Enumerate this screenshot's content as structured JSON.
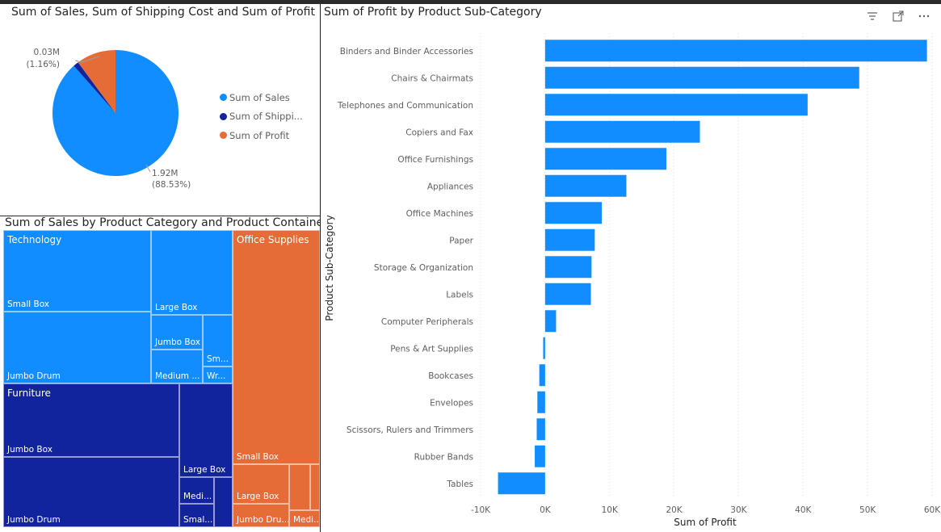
{
  "colors": {
    "sales": "#118dff",
    "shipping": "#12239e",
    "profit": "#e66c37",
    "technology": "#118dff",
    "furniture": "#12239e",
    "office_supplies": "#e66c37",
    "bar": "#118dff",
    "grid": "#d9d9d9"
  },
  "pie": {
    "title": "Sum of Sales, Sum of Shipping Cost and Sum of Profit",
    "label_small": {
      "value": "0.03M",
      "pct": "(1.16%)"
    },
    "label_large": {
      "value": "1.92M",
      "pct": "(88.53%)"
    },
    "legend": [
      {
        "label": "Sum of Sales",
        "color": "#118dff"
      },
      {
        "label": "Sum of Shippi...",
        "color": "#12239e"
      },
      {
        "label": "Sum of Profit",
        "color": "#e66c37"
      }
    ]
  },
  "treemap": {
    "title": "Sum of Sales by Product Category and Product Container",
    "categories": {
      "technology": "Technology",
      "furniture": "Furniture",
      "office_supplies": "Office Supplies"
    },
    "labels": {
      "tech_small_box": "Small Box",
      "tech_jumbo_drum": "Jumbo Drum",
      "tech_large_box": "Large Box",
      "tech_jumbo_box": "Jumbo Box",
      "tech_medium": "Medium ...",
      "tech_sm": "Sm...",
      "tech_wr": "Wr...",
      "furn_jumbo_box": "Jumbo Box",
      "furn_jumbo_drum": "Jumbo Drum",
      "furn_large_box": "Large Box",
      "furn_medi": "Medi...",
      "furn_smal": "Smal...",
      "off_small_box": "Small Box",
      "off_large_box": "Large Box",
      "off_jumbo_dru": "Jumbo Dru...",
      "off_medi": "Medi..."
    }
  },
  "bar_title": "Sum of Profit by Product Sub-Category",
  "chart_data": [
    {
      "type": "pie",
      "title": "Sum of Sales, Sum of Shipping Cost and Sum of Profit",
      "labels": [
        "Sum of Sales",
        "Sum of Shippi...",
        "Sum of Profit"
      ],
      "values": [
        1.92,
        0.03,
        0.22
      ],
      "data_labels": [
        "1.92M (88.53%)",
        "0.03M (1.16%)",
        ""
      ]
    },
    {
      "type": "bar",
      "orientation": "horizontal",
      "title": "Sum of Profit by Product Sub-Category",
      "xlabel": "Sum of Profit",
      "ylabel": "Product Sub-Category",
      "xlim": [
        -10000,
        60000
      ],
      "x_ticks": [
        "-10K",
        "0K",
        "10K",
        "20K",
        "30K",
        "40K",
        "50K",
        "60K"
      ],
      "grid": true,
      "categories": [
        "Binders and Binder Accessories",
        "Chairs & Chairmats",
        "Telephones and Communication",
        "Copiers and Fax",
        "Office Furnishings",
        "Appliances",
        "Office Machines",
        "Paper",
        "Storage & Organization",
        "Labels",
        "Computer Peripherals",
        "Pens & Art Supplies",
        "Bookcases",
        "Envelopes",
        "Scissors, Rulers and Trimmers",
        "Rubber Bands",
        "Tables"
      ],
      "values": [
        59200,
        48700,
        40700,
        24000,
        18800,
        12600,
        8800,
        7700,
        7200,
        7100,
        1700,
        -300,
        -900,
        -1200,
        -1300,
        -1600,
        -7300
      ]
    }
  ]
}
